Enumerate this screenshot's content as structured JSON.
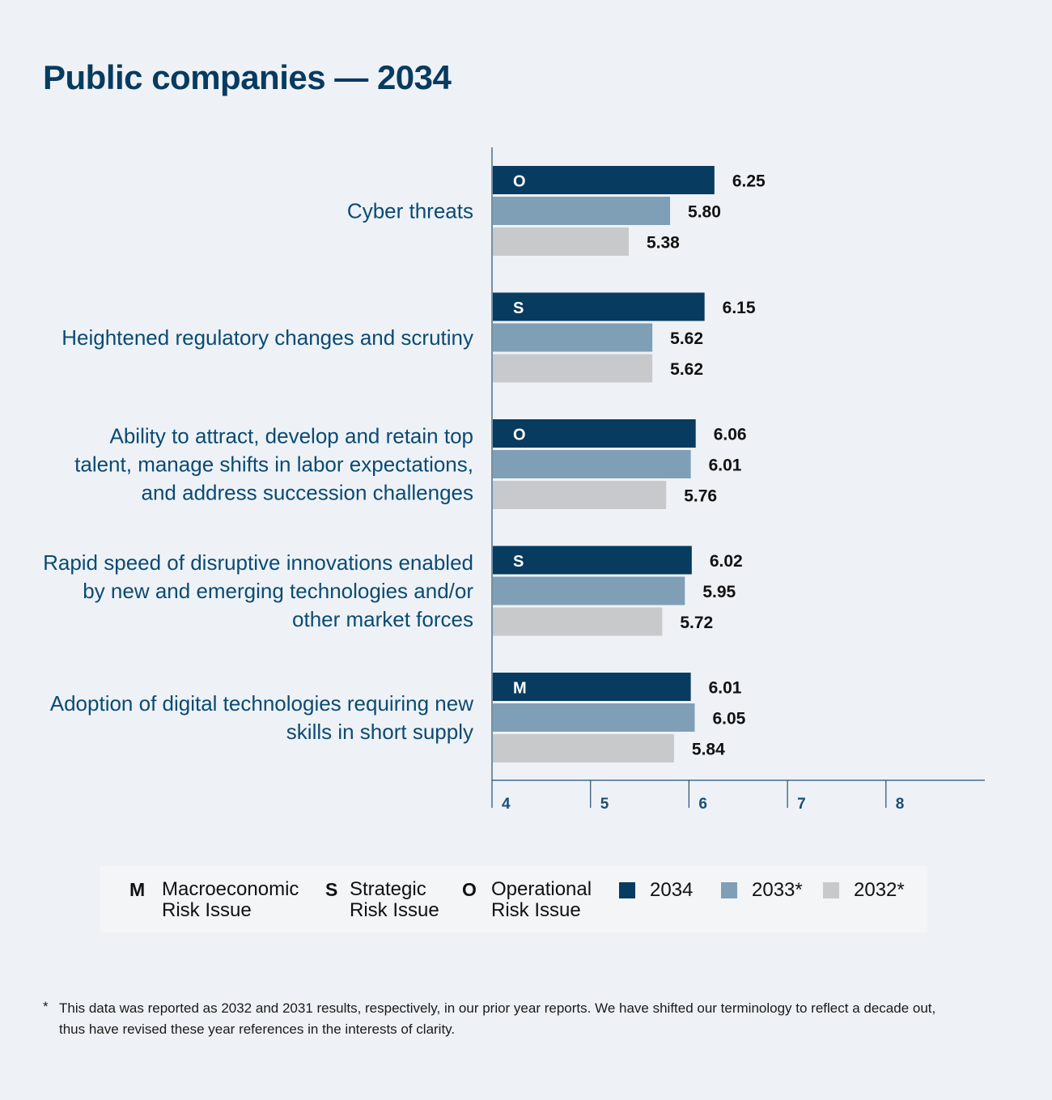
{
  "title": "Public companies — 2034",
  "colors": {
    "y2034": "#073b60",
    "y2033": "#7f9fb6",
    "y2032": "#c8c9ca",
    "axis": "#234e73"
  },
  "chart_data": {
    "type": "bar",
    "orientation": "horizontal",
    "categories": [
      [
        "Cyber threats"
      ],
      [
        "Heightened regulatory changes and scrutiny"
      ],
      [
        "Ability to attract, develop and retain top",
        "talent, manage shifts in labor expectations,",
        "and address succession challenges"
      ],
      [
        "Rapid speed of disruptive innovations enabled",
        "by new and emerging technologies and/or",
        "other market forces"
      ],
      [
        "Adoption of digital technologies requiring new",
        "skills in short supply"
      ]
    ],
    "risk_codes": [
      "O",
      "S",
      "O",
      "S",
      "M"
    ],
    "series": [
      {
        "name": "2034",
        "values": [
          6.25,
          6.15,
          6.06,
          6.02,
          6.01
        ],
        "labels": [
          "6.25",
          "6.15",
          "6.06",
          "6.02",
          "6.01"
        ]
      },
      {
        "name": "2033*",
        "values": [
          5.8,
          5.62,
          6.01,
          5.95,
          6.05
        ],
        "labels": [
          "5.80",
          "5.62",
          "6.01",
          "5.95",
          "6.05"
        ]
      },
      {
        "name": "2032*",
        "values": [
          5.38,
          5.62,
          5.76,
          5.72,
          5.84
        ],
        "labels": [
          "5.38",
          "5.62",
          "5.76",
          "5.72",
          "5.84"
        ]
      }
    ],
    "xlim": [
      4,
      9
    ],
    "ticks": [
      "4",
      "5",
      "6",
      "7",
      "8"
    ],
    "grid": false,
    "legend_position": "bottom"
  },
  "legend": {
    "risk_types": [
      {
        "code": "M",
        "line1": "Macroeconomic",
        "line2": "Risk Issue"
      },
      {
        "code": "S",
        "line1": "Strategic",
        "line2": "Risk Issue"
      },
      {
        "code": "O",
        "line1": "Operational",
        "line2": "Risk Issue"
      }
    ],
    "years": [
      "2034",
      "2033*",
      "2032*"
    ]
  },
  "footnote": {
    "marker": "*",
    "text": "This data was reported as 2032 and 2031 results, respectively, in our prior year reports. We have shifted our terminology to reflect a decade out, thus have revised these year references in the interests of clarity."
  }
}
